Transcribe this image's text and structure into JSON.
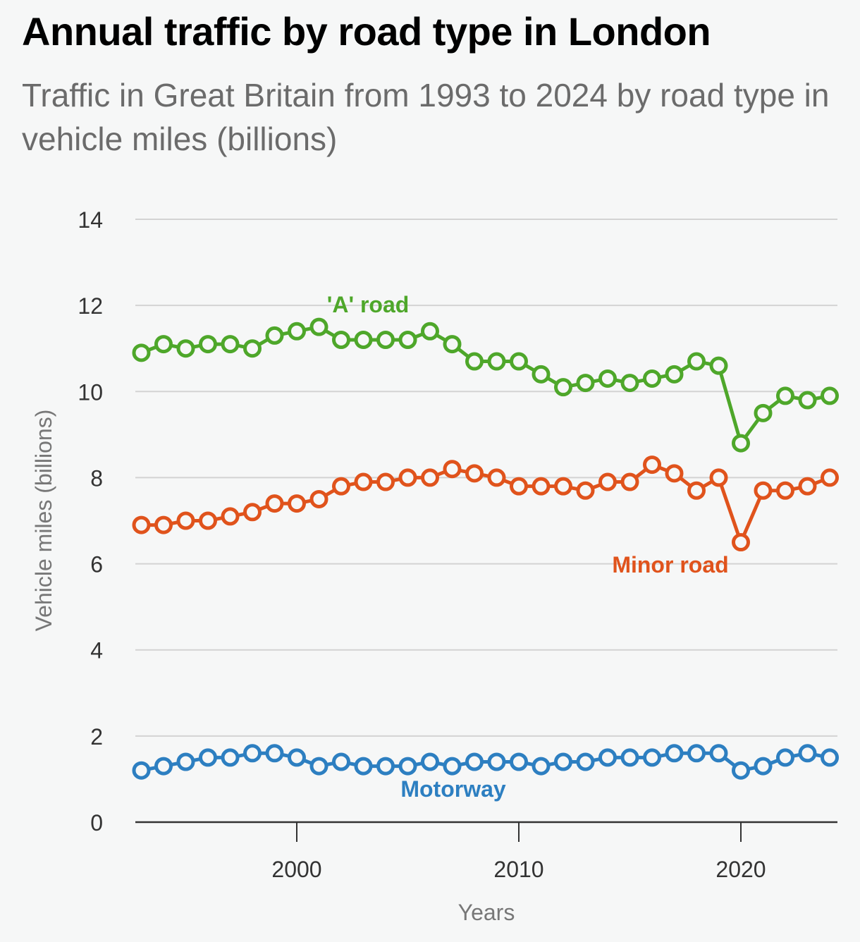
{
  "title": "Annual traffic by road type in London",
  "subtitle": "Traffic in Great Britain from 1993 to 2024 by road type in vehicle miles (billions)",
  "chart_data": {
    "type": "line",
    "title": "Annual traffic by road type in London",
    "subtitle": "Traffic in Great Britain from 1993 to 2024 by road type in vehicle miles (billions)",
    "xlabel": "Years",
    "ylabel": "Vehicle miles (billions)",
    "x": [
      1993,
      1994,
      1995,
      1996,
      1997,
      1998,
      1999,
      2000,
      2001,
      2002,
      2003,
      2004,
      2005,
      2006,
      2007,
      2008,
      2009,
      2010,
      2011,
      2012,
      2013,
      2014,
      2015,
      2016,
      2017,
      2018,
      2019,
      2020,
      2021,
      2022,
      2023,
      2024
    ],
    "xlim": [
      1993,
      2024
    ],
    "ylim": [
      0,
      14
    ],
    "xticks": [
      2000,
      2010,
      2020
    ],
    "yticks": [
      0,
      2,
      4,
      6,
      8,
      10,
      12,
      14
    ],
    "grid": true,
    "legend": "inline labels",
    "series": [
      {
        "name": "'A' road",
        "color": "#4ea72a",
        "values": [
          10.9,
          11.1,
          11.0,
          11.1,
          11.1,
          11.0,
          11.3,
          11.4,
          11.5,
          11.2,
          11.2,
          11.2,
          11.2,
          11.4,
          11.1,
          10.7,
          10.7,
          10.7,
          10.4,
          10.1,
          10.2,
          10.3,
          10.2,
          10.3,
          10.4,
          10.7,
          10.6,
          8.8,
          9.5,
          9.9,
          9.8,
          9.9
        ]
      },
      {
        "name": "Minor road",
        "color": "#e0531c",
        "values": [
          6.9,
          6.9,
          7.0,
          7.0,
          7.1,
          7.2,
          7.4,
          7.4,
          7.5,
          7.8,
          7.9,
          7.9,
          8.0,
          8.0,
          8.2,
          8.1,
          8.0,
          7.8,
          7.8,
          7.8,
          7.7,
          7.9,
          7.9,
          8.3,
          8.1,
          7.7,
          8.0,
          6.5,
          7.7,
          7.7,
          7.8,
          8.0
        ]
      },
      {
        "name": "Motorway",
        "color": "#2d7fc1",
        "values": [
          1.2,
          1.3,
          1.4,
          1.5,
          1.5,
          1.6,
          1.6,
          1.5,
          1.3,
          1.4,
          1.3,
          1.3,
          1.3,
          1.4,
          1.3,
          1.4,
          1.4,
          1.4,
          1.3,
          1.4,
          1.4,
          1.5,
          1.5,
          1.5,
          1.6,
          1.6,
          1.6,
          1.2,
          1.3,
          1.5,
          1.6,
          1.5
        ]
      }
    ],
    "annotations": [
      {
        "text": "'A' road",
        "series": "'A' road",
        "near_x": 2002
      },
      {
        "text": "Minor road",
        "series": "Minor road",
        "near_x": 2017
      },
      {
        "text": "Motorway",
        "series": "Motorway",
        "near_x": 2007
      }
    ]
  }
}
